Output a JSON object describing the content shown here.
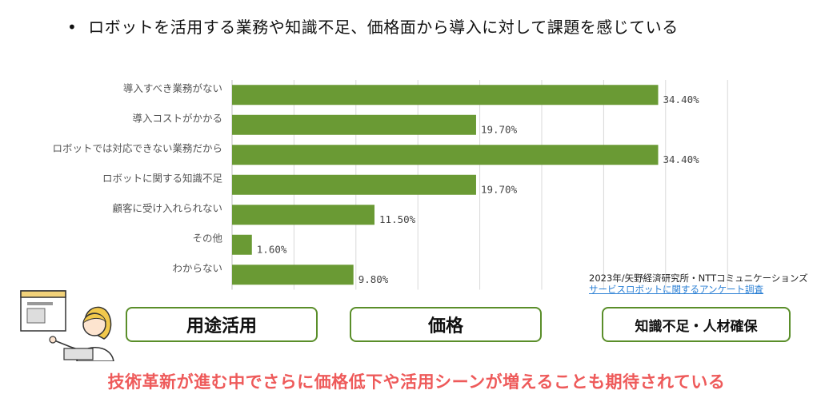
{
  "header": {
    "bullet": "•",
    "text": "ロボットを活用する業務や知識不足、価格面から導入に対して課題を感じている"
  },
  "chart_data": {
    "type": "bar",
    "orientation": "horizontal",
    "categories": [
      "導入すべき業務がない",
      "導入コストがかかる",
      "ロボットでは対応できない業務だから",
      "ロボットに関する知識不足",
      "顧客に受け入れられない",
      "その他",
      "わからない"
    ],
    "values": [
      34.4,
      19.7,
      34.4,
      19.7,
      11.5,
      1.6,
      9.8
    ],
    "value_labels": [
      "34.40%",
      "19.70%",
      "34.40%",
      "19.70%",
      "11.50%",
      "1.60%",
      "9.80%"
    ],
    "xlim": [
      0,
      40
    ],
    "grid": true,
    "bar_color": "#6a9a34"
  },
  "source": {
    "line1": "2023年/矢野経済研究所・NTTコミュニケーションズ",
    "line2": "サービスロボットに関するアンケート調査"
  },
  "tags": [
    "用途活用",
    "価格",
    "知識不足・人材確保"
  ],
  "footer": "技術革新が進む中でさらに価格低下や活用シーンが増えることも期待されている"
}
